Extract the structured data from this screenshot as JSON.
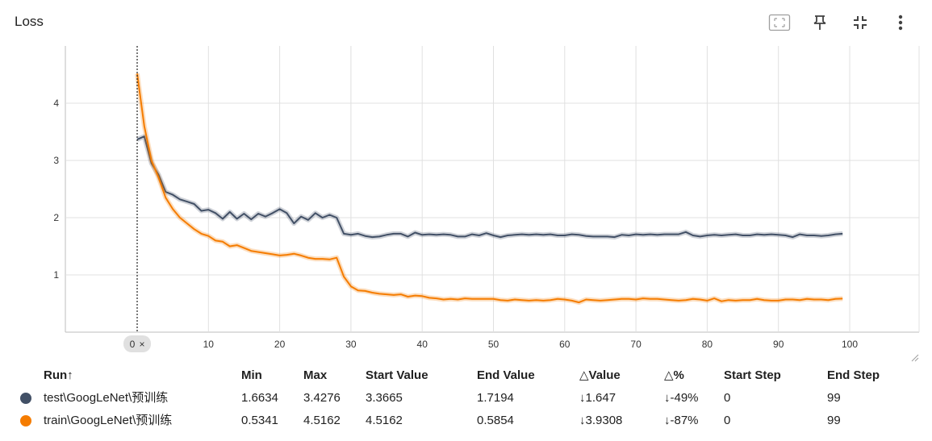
{
  "header": {
    "title": "Loss",
    "icons": [
      "fit-domain-icon",
      "pin-icon",
      "collapse-icon",
      "more-vert-icon"
    ]
  },
  "chart_data": {
    "type": "line",
    "title": "Loss",
    "xlim": [
      0,
      100
    ],
    "ylim": [
      0,
      5
    ],
    "x_ticks": [
      10,
      20,
      30,
      40,
      50,
      60,
      70,
      80,
      90,
      100
    ],
    "y_ticks": [
      1,
      2,
      3,
      4
    ],
    "grid": true,
    "step_marker": {
      "label": "0",
      "close": "×",
      "x": 0
    },
    "series": [
      {
        "name": "test\\GoogLeNet\\预训练",
        "color": "#425066",
        "x": [
          0,
          1,
          2,
          3,
          4,
          5,
          6,
          7,
          8,
          9,
          10,
          11,
          12,
          13,
          14,
          15,
          16,
          17,
          18,
          19,
          20,
          21,
          22,
          23,
          24,
          25,
          26,
          27,
          28,
          29,
          30,
          31,
          32,
          33,
          34,
          35,
          36,
          37,
          38,
          39,
          40,
          41,
          42,
          43,
          44,
          45,
          46,
          47,
          48,
          49,
          50,
          51,
          52,
          53,
          54,
          55,
          56,
          57,
          58,
          59,
          60,
          61,
          62,
          63,
          64,
          65,
          66,
          67,
          68,
          69,
          70,
          71,
          72,
          73,
          74,
          75,
          76,
          77,
          78,
          79,
          80,
          81,
          82,
          83,
          84,
          85,
          86,
          87,
          88,
          89,
          90,
          91,
          92,
          93,
          94,
          95,
          96,
          97,
          98,
          99
        ],
        "y": [
          3.3665,
          3.42,
          2.95,
          2.75,
          2.45,
          2.4,
          2.32,
          2.28,
          2.24,
          2.12,
          2.14,
          2.08,
          1.98,
          2.1,
          1.98,
          2.07,
          1.97,
          2.07,
          2.02,
          2.08,
          2.15,
          2.08,
          1.9,
          2.02,
          1.96,
          2.08,
          2.0,
          2.05,
          2.0,
          1.72,
          1.7,
          1.72,
          1.68,
          1.66,
          1.67,
          1.7,
          1.72,
          1.72,
          1.67,
          1.74,
          1.7,
          1.71,
          1.7,
          1.71,
          1.7,
          1.67,
          1.67,
          1.71,
          1.69,
          1.73,
          1.69,
          1.66,
          1.69,
          1.7,
          1.71,
          1.7,
          1.71,
          1.7,
          1.71,
          1.69,
          1.69,
          1.71,
          1.7,
          1.68,
          1.67,
          1.67,
          1.67,
          1.66,
          1.7,
          1.69,
          1.71,
          1.7,
          1.71,
          1.7,
          1.71,
          1.71,
          1.71,
          1.75,
          1.69,
          1.67,
          1.69,
          1.7,
          1.69,
          1.7,
          1.71,
          1.69,
          1.69,
          1.71,
          1.7,
          1.71,
          1.7,
          1.69,
          1.66,
          1.71,
          1.69,
          1.69,
          1.68,
          1.69,
          1.71,
          1.7194
        ]
      },
      {
        "name": "train\\GoogLeNet\\预训练",
        "color": "#f57c00",
        "x": [
          0,
          1,
          2,
          3,
          4,
          5,
          6,
          7,
          8,
          9,
          10,
          11,
          12,
          13,
          14,
          15,
          16,
          17,
          18,
          19,
          20,
          21,
          22,
          23,
          24,
          25,
          26,
          27,
          28,
          29,
          30,
          31,
          32,
          33,
          34,
          35,
          36,
          37,
          38,
          39,
          40,
          41,
          42,
          43,
          44,
          45,
          46,
          47,
          48,
          49,
          50,
          51,
          52,
          53,
          54,
          55,
          56,
          57,
          58,
          59,
          60,
          61,
          62,
          63,
          64,
          65,
          66,
          67,
          68,
          69,
          70,
          71,
          72,
          73,
          74,
          75,
          76,
          77,
          78,
          79,
          80,
          81,
          82,
          83,
          84,
          85,
          86,
          87,
          88,
          89,
          90,
          91,
          92,
          93,
          94,
          95,
          96,
          97,
          98,
          99
        ],
        "y": [
          4.5162,
          3.6,
          3.0,
          2.7,
          2.35,
          2.15,
          2.0,
          1.9,
          1.8,
          1.72,
          1.68,
          1.6,
          1.58,
          1.5,
          1.52,
          1.47,
          1.42,
          1.4,
          1.38,
          1.36,
          1.34,
          1.35,
          1.37,
          1.34,
          1.3,
          1.28,
          1.28,
          1.27,
          1.3,
          0.97,
          0.8,
          0.73,
          0.72,
          0.69,
          0.67,
          0.66,
          0.65,
          0.66,
          0.62,
          0.64,
          0.63,
          0.6,
          0.59,
          0.57,
          0.58,
          0.57,
          0.59,
          0.58,
          0.58,
          0.58,
          0.58,
          0.56,
          0.55,
          0.57,
          0.56,
          0.55,
          0.56,
          0.55,
          0.56,
          0.58,
          0.57,
          0.55,
          0.52,
          0.57,
          0.56,
          0.55,
          0.56,
          0.57,
          0.58,
          0.58,
          0.57,
          0.59,
          0.58,
          0.58,
          0.57,
          0.56,
          0.55,
          0.56,
          0.58,
          0.57,
          0.55,
          0.59,
          0.54,
          0.56,
          0.55,
          0.56,
          0.56,
          0.58,
          0.56,
          0.55,
          0.55,
          0.57,
          0.57,
          0.56,
          0.58,
          0.57,
          0.57,
          0.56,
          0.58,
          0.5854
        ]
      }
    ]
  },
  "table": {
    "columns": [
      "Run↑",
      "Min",
      "Max",
      "Start Value",
      "End Value",
      "△Value",
      "△%",
      "Start Step",
      "End Step"
    ],
    "rows": [
      {
        "run": "test\\GoogLeNet\\预训练",
        "color": "#425066",
        "min": "1.6634",
        "max": "3.4276",
        "start_value": "3.3665",
        "end_value": "1.7194",
        "delta_value": "↓1.647",
        "delta_pct": "↓-49%",
        "start_step": "0",
        "end_step": "99"
      },
      {
        "run": "train\\GoogLeNet\\预训练",
        "color": "#f57c00",
        "min": "0.5341",
        "max": "4.5162",
        "start_value": "4.5162",
        "end_value": "0.5854",
        "delta_value": "↓3.9308",
        "delta_pct": "↓-87%",
        "start_step": "0",
        "end_step": "99"
      }
    ]
  }
}
